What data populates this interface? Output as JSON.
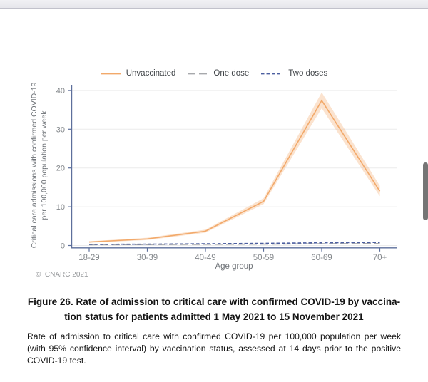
{
  "viewer": {
    "scrollbar": true
  },
  "chart_data": {
    "type": "line",
    "title": "",
    "categories": [
      "18-29",
      "30-39",
      "40-49",
      "50-59",
      "60-69",
      "70+"
    ],
    "series": [
      {
        "name": "Unvaccinated",
        "values": [
          0.9,
          1.7,
          3.7,
          11.4,
          37.4,
          14.0
        ],
        "ci_lower": [
          0.7,
          1.4,
          3.3,
          10.7,
          35.4,
          12.7
        ],
        "ci_upper": [
          1.1,
          2.0,
          4.1,
          12.2,
          39.5,
          15.4
        ],
        "color": "#F2A96A",
        "dash": "solid"
      },
      {
        "name": "One dose",
        "values": [
          0.2,
          0.25,
          0.3,
          0.35,
          0.45,
          0.5
        ],
        "color": "#A7A9AC",
        "dash": "long-dash"
      },
      {
        "name": "Two doses",
        "values": [
          0.3,
          0.35,
          0.45,
          0.55,
          0.7,
          0.8
        ],
        "color": "#4C5FA0",
        "dash": "short-dash"
      }
    ],
    "xlabel": "Age group",
    "ylabel_lines": [
      "Critical care admissions with confirmed COVID-19",
      "per 100,000 population per week"
    ],
    "yticks": [
      0,
      10,
      20,
      30,
      40
    ],
    "ylim": [
      0,
      40
    ],
    "grid": "horizontal",
    "legend_position": "top",
    "source_note": "© ICNARC 2021",
    "colors": {
      "axis": "#5D6F9B",
      "grid": "#ECECEC",
      "tick_label": "#83878B",
      "ci_fill": "#F2A96A"
    }
  },
  "caption": {
    "title_line1": "Figure 26. Rate of admission to critical care with confirmed COVID-19 by vaccina-",
    "title_line2": "tion status for patients admitted 1 May 2021 to 15 November 2021",
    "body": "Rate of admission to critical care with confirmed COVID-19 per 100,000 population per week (with 95% confidence interval) by vaccination status, assessed at 14 days prior to the positive COVID-19 test."
  }
}
